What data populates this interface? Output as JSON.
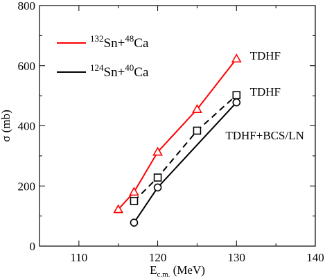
{
  "chart_data": {
    "type": "line",
    "xlabel_main": "E",
    "xlabel_sub": "c.m.",
    "xlabel_unit": " (MeV)",
    "ylabel": "σ (mb)",
    "xlim": [
      105,
      140
    ],
    "ylim": [
      0,
      800
    ],
    "xticks": [
      110,
      120,
      130,
      140
    ],
    "yticks": [
      0,
      200,
      400,
      600,
      800
    ],
    "grid": false,
    "legend_position": "top-left",
    "series": [
      {
        "name_parts": {
          "a1": "132",
          "e1": "Sn+",
          "a2": "48",
          "e2": "Ca"
        },
        "color": "#ff0000",
        "style": "solid",
        "marker": "triangle",
        "x": [
          115,
          117,
          120,
          125,
          130
        ],
        "y": [
          122,
          180,
          313,
          455,
          623
        ]
      },
      {
        "name_parts": {
          "a1": "124",
          "e1": "Sn+",
          "a2": "40",
          "e2": "Ca"
        },
        "color": "#000000",
        "style": "dashed",
        "marker": "square",
        "x": [
          117,
          120,
          125,
          130
        ],
        "y": [
          150,
          228,
          384,
          502
        ]
      },
      {
        "color": "#000000",
        "style": "solid",
        "marker": "circle",
        "x": [
          117,
          120,
          130
        ],
        "y": [
          78,
          195,
          478
        ]
      }
    ],
    "annotations": [
      {
        "text": "TDHF",
        "x": 131.7,
        "y": 620
      },
      {
        "text": "TDHF",
        "x": 131.7,
        "y": 500
      },
      {
        "text": "TDHF+BCS/LN",
        "x": 128.6,
        "y": 355
      }
    ]
  }
}
